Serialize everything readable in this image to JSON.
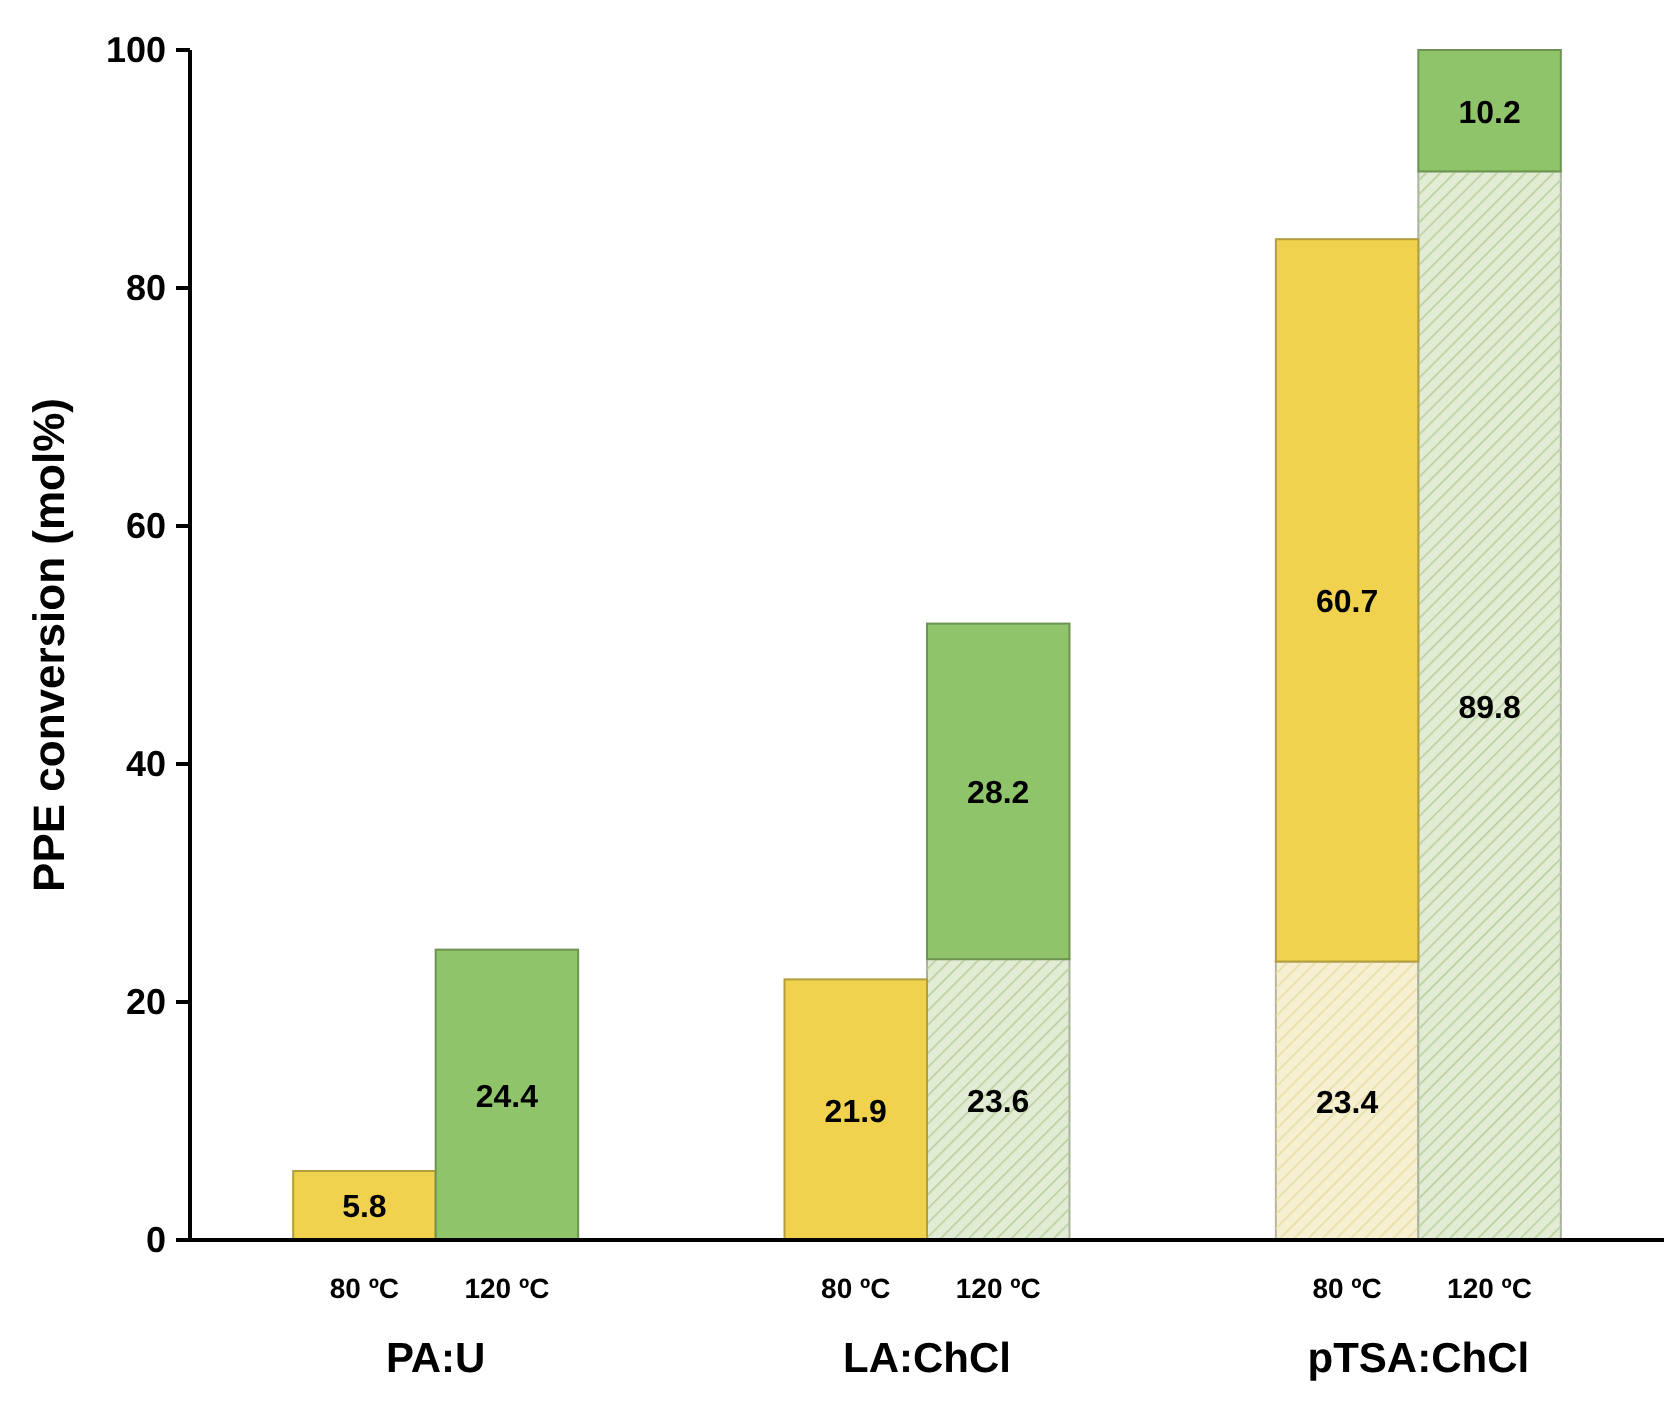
{
  "chart_data": {
    "type": "bar",
    "stacked": true,
    "ylabel": "PPE conversion (mol%)",
    "categories": [
      "80 ºC",
      "120 ºC",
      "80 ºC",
      "120 ºC",
      "80 ºC",
      "120 ºC"
    ],
    "annotations": [
      "PA:U",
      "LA:ChCl",
      "pTSA:ChCl"
    ],
    "series": [
      {
        "colors": [
          null,
          null,
          null,
          "#e2ecd4",
          "#f6efd2",
          "#e2ecd4"
        ],
        "values": [
          null,
          null,
          null,
          23.6,
          23.4,
          89.8
        ]
      },
      {
        "colors": [
          "#f0d24e",
          "#8fc46a",
          "#f0d24e",
          "#8fc46a",
          "#f0d24e",
          "#8fc46a"
        ],
        "values": [
          5.8,
          24.4,
          21.9,
          28.2,
          60.7,
          10.2
        ]
      }
    ],
    "ylim": [
      0,
      100
    ],
    "yticks": [
      0,
      20,
      40,
      60,
      80,
      100
    ],
    "data_labels": true,
    "grid": false
  }
}
